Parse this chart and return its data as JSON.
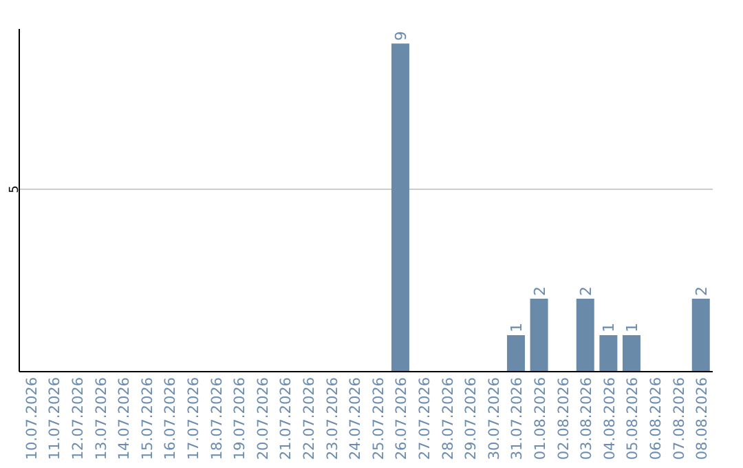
{
  "chart_data": {
    "type": "bar",
    "categories": [
      "10.07.2026",
      "11.07.2026",
      "12.07.2026",
      "13.07.2026",
      "14.07.2026",
      "15.07.2026",
      "16.07.2026",
      "17.07.2026",
      "18.07.2026",
      "19.07.2026",
      "20.07.2026",
      "21.07.2026",
      "22.07.2026",
      "23.07.2026",
      "24.07.2026",
      "25.07.2026",
      "26.07.2026",
      "27.07.2026",
      "28.07.2026",
      "29.07.2026",
      "30.07.2026",
      "31.07.2026",
      "01.08.2026",
      "02.08.2026",
      "03.08.2026",
      "04.08.2026",
      "05.08.2026",
      "06.08.2026",
      "07.08.2026",
      "08.08.2026"
    ],
    "values": [
      null,
      null,
      null,
      null,
      null,
      null,
      null,
      null,
      null,
      null,
      null,
      null,
      null,
      null,
      null,
      null,
      9,
      null,
      null,
      null,
      null,
      1,
      2,
      null,
      2,
      1,
      1,
      null,
      null,
      2
    ],
    "data_labels": true,
    "color": "#6a8aaa",
    "ylim": [
      0,
      9.4
    ],
    "yticks": [
      5
    ],
    "grid": "y"
  }
}
